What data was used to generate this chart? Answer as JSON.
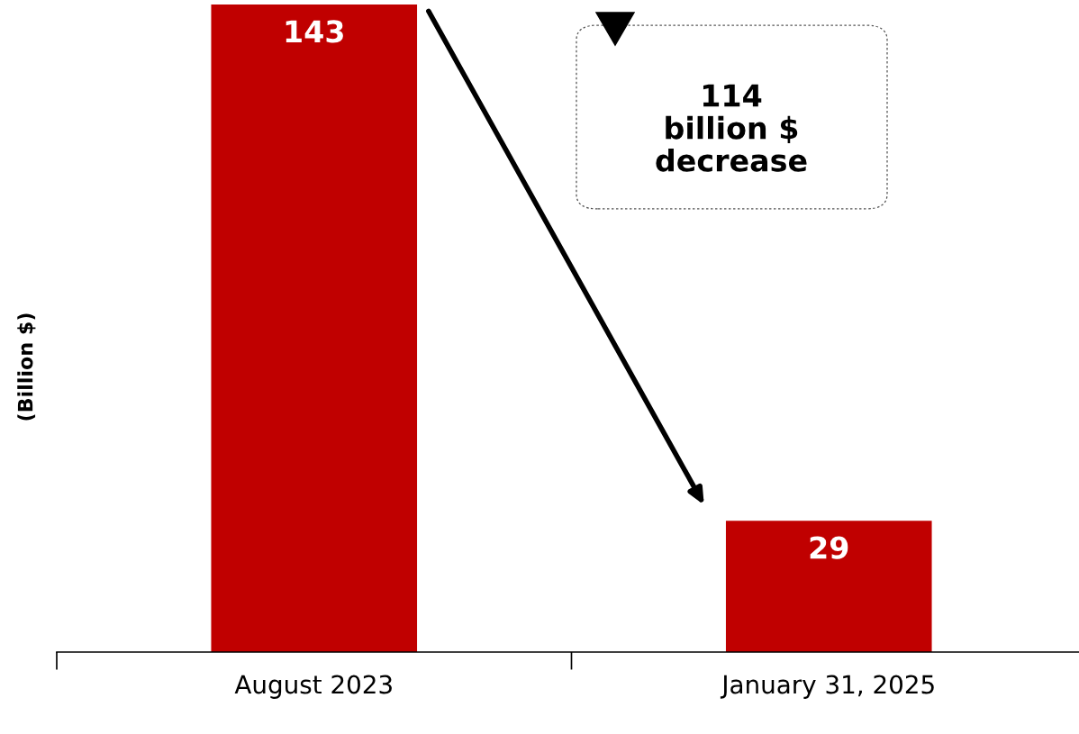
{
  "chart_data": {
    "type": "bar",
    "ylabel": "(Billion $)",
    "categories": [
      "August 2023",
      "January 31, 2025"
    ],
    "values": [
      143,
      29
    ],
    "color": "#c00000",
    "data_labels": true,
    "annotations": [
      "114\nbillion $\ndecrease"
    ]
  }
}
